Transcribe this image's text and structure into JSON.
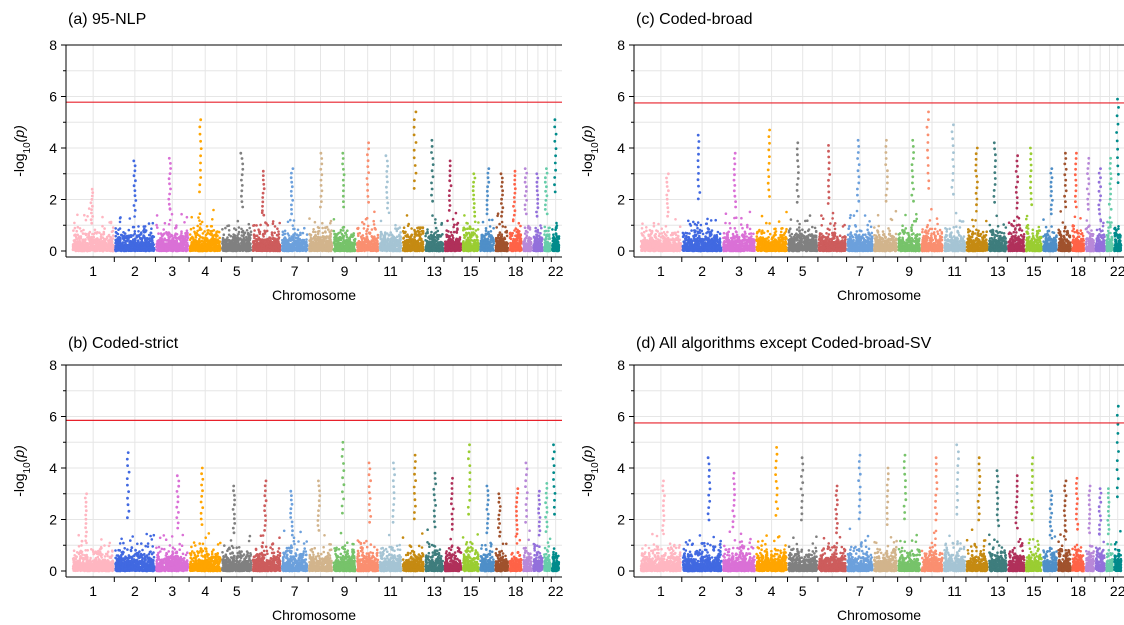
{
  "colors": {
    "threshold": "#e8212b",
    "grid": "#e6e6e6",
    "axis": "#000000",
    "chromosomes": [
      "#ffb6c1",
      "#4169e1",
      "#da70d6",
      "#ffa500",
      "#808080",
      "#cd5c5c",
      "#6ca0dc",
      "#d2b48c",
      "#77c36a",
      "#fa8f70",
      "#a5c4d4",
      "#c58a12",
      "#3e7d7d",
      "#b0305a",
      "#9acd32",
      "#4f8fc8",
      "#a0522d",
      "#ff6347",
      "#b888d8",
      "#9370db",
      "#66cdaa",
      "#008b8b"
    ]
  },
  "chart_data": [
    {
      "type": "scatter",
      "subtype": "manhattan",
      "title": "(a) 95-NLP",
      "xlabel": "Chromosome",
      "ylabel_base": "-log",
      "ylabel_sub": "10",
      "ylabel_arg": "(p)",
      "ylim": [
        0,
        8
      ],
      "yticks": [
        "0",
        "2",
        "4",
        "6",
        "8"
      ],
      "threshold": 5.78,
      "chromosome_labels": [
        "1",
        "2",
        "3",
        "4",
        "5",
        "7",
        "9",
        "11",
        "13",
        "15",
        "18",
        "22"
      ],
      "chromosome_label_numbers": [
        1,
        2,
        3,
        4,
        5,
        7,
        9,
        11,
        13,
        15,
        18,
        22
      ],
      "chromosome_max": [
        2.4,
        3.5,
        3.6,
        5.1,
        3.8,
        3.1,
        3.2,
        3.8,
        3.8,
        4.2,
        3.7,
        5.4,
        4.3,
        3.5,
        3.0,
        3.2,
        3.0,
        3.1,
        3.2,
        3.0,
        3.2,
        5.1
      ],
      "grid": true
    },
    {
      "type": "scatter",
      "subtype": "manhattan",
      "title": "(c) Coded-broad",
      "xlabel": "Chromosome",
      "ylabel_base": "-log",
      "ylabel_sub": "10",
      "ylabel_arg": "(p)",
      "ylim": [
        0,
        8
      ],
      "yticks": [
        "0",
        "2",
        "4",
        "6",
        "8"
      ],
      "threshold": 5.75,
      "chromosome_labels": [
        "1",
        "2",
        "3",
        "4",
        "5",
        "7",
        "9",
        "11",
        "13",
        "15",
        "18",
        "22"
      ],
      "chromosome_label_numbers": [
        1,
        2,
        3,
        4,
        5,
        7,
        9,
        11,
        13,
        15,
        18,
        22
      ],
      "chromosome_max": [
        3.0,
        4.5,
        3.8,
        4.7,
        4.2,
        4.1,
        4.3,
        4.3,
        4.3,
        5.4,
        4.9,
        4.0,
        4.2,
        3.7,
        4.0,
        3.2,
        3.8,
        3.8,
        3.6,
        3.2,
        3.6,
        5.9
      ],
      "grid": true
    },
    {
      "type": "scatter",
      "subtype": "manhattan",
      "title": "(b) Coded-strict",
      "xlabel": "Chromosome",
      "ylabel_base": "-log",
      "ylabel_sub": "10",
      "ylabel_arg": "(p)",
      "ylim": [
        0,
        8
      ],
      "yticks": [
        "0",
        "2",
        "4",
        "6",
        "8"
      ],
      "threshold": 5.85,
      "chromosome_labels": [
        "1",
        "2",
        "3",
        "4",
        "5",
        "7",
        "9",
        "11",
        "13",
        "15",
        "18",
        "22"
      ],
      "chromosome_label_numbers": [
        1,
        2,
        3,
        4,
        5,
        7,
        9,
        11,
        13,
        15,
        18,
        22
      ],
      "chromosome_max": [
        3.0,
        4.6,
        3.7,
        4.0,
        3.3,
        3.5,
        3.1,
        3.5,
        5.0,
        4.2,
        4.2,
        4.5,
        3.8,
        3.6,
        4.9,
        3.3,
        3.0,
        3.2,
        4.2,
        3.1,
        3.4,
        4.9
      ],
      "grid": true
    },
    {
      "type": "scatter",
      "subtype": "manhattan",
      "title": "(d) All algorithms except Coded-broad-SV",
      "xlabel": "Chromosome",
      "ylabel_base": "-log",
      "ylabel_sub": "10",
      "ylabel_arg": "(p)",
      "ylim": [
        0,
        8
      ],
      "yticks": [
        "0",
        "2",
        "4",
        "6",
        "8"
      ],
      "threshold": 5.75,
      "chromosome_labels": [
        "1",
        "2",
        "3",
        "4",
        "5",
        "7",
        "9",
        "11",
        "13",
        "15",
        "18",
        "22"
      ],
      "chromosome_label_numbers": [
        1,
        2,
        3,
        4,
        5,
        7,
        9,
        11,
        13,
        15,
        18,
        22
      ],
      "chromosome_max": [
        3.5,
        4.4,
        3.8,
        4.8,
        4.4,
        3.3,
        4.5,
        4.0,
        4.5,
        4.4,
        4.9,
        4.4,
        3.9,
        3.7,
        4.4,
        3.1,
        3.5,
        3.6,
        3.3,
        3.2,
        3.2,
        6.4
      ],
      "grid": true
    }
  ]
}
